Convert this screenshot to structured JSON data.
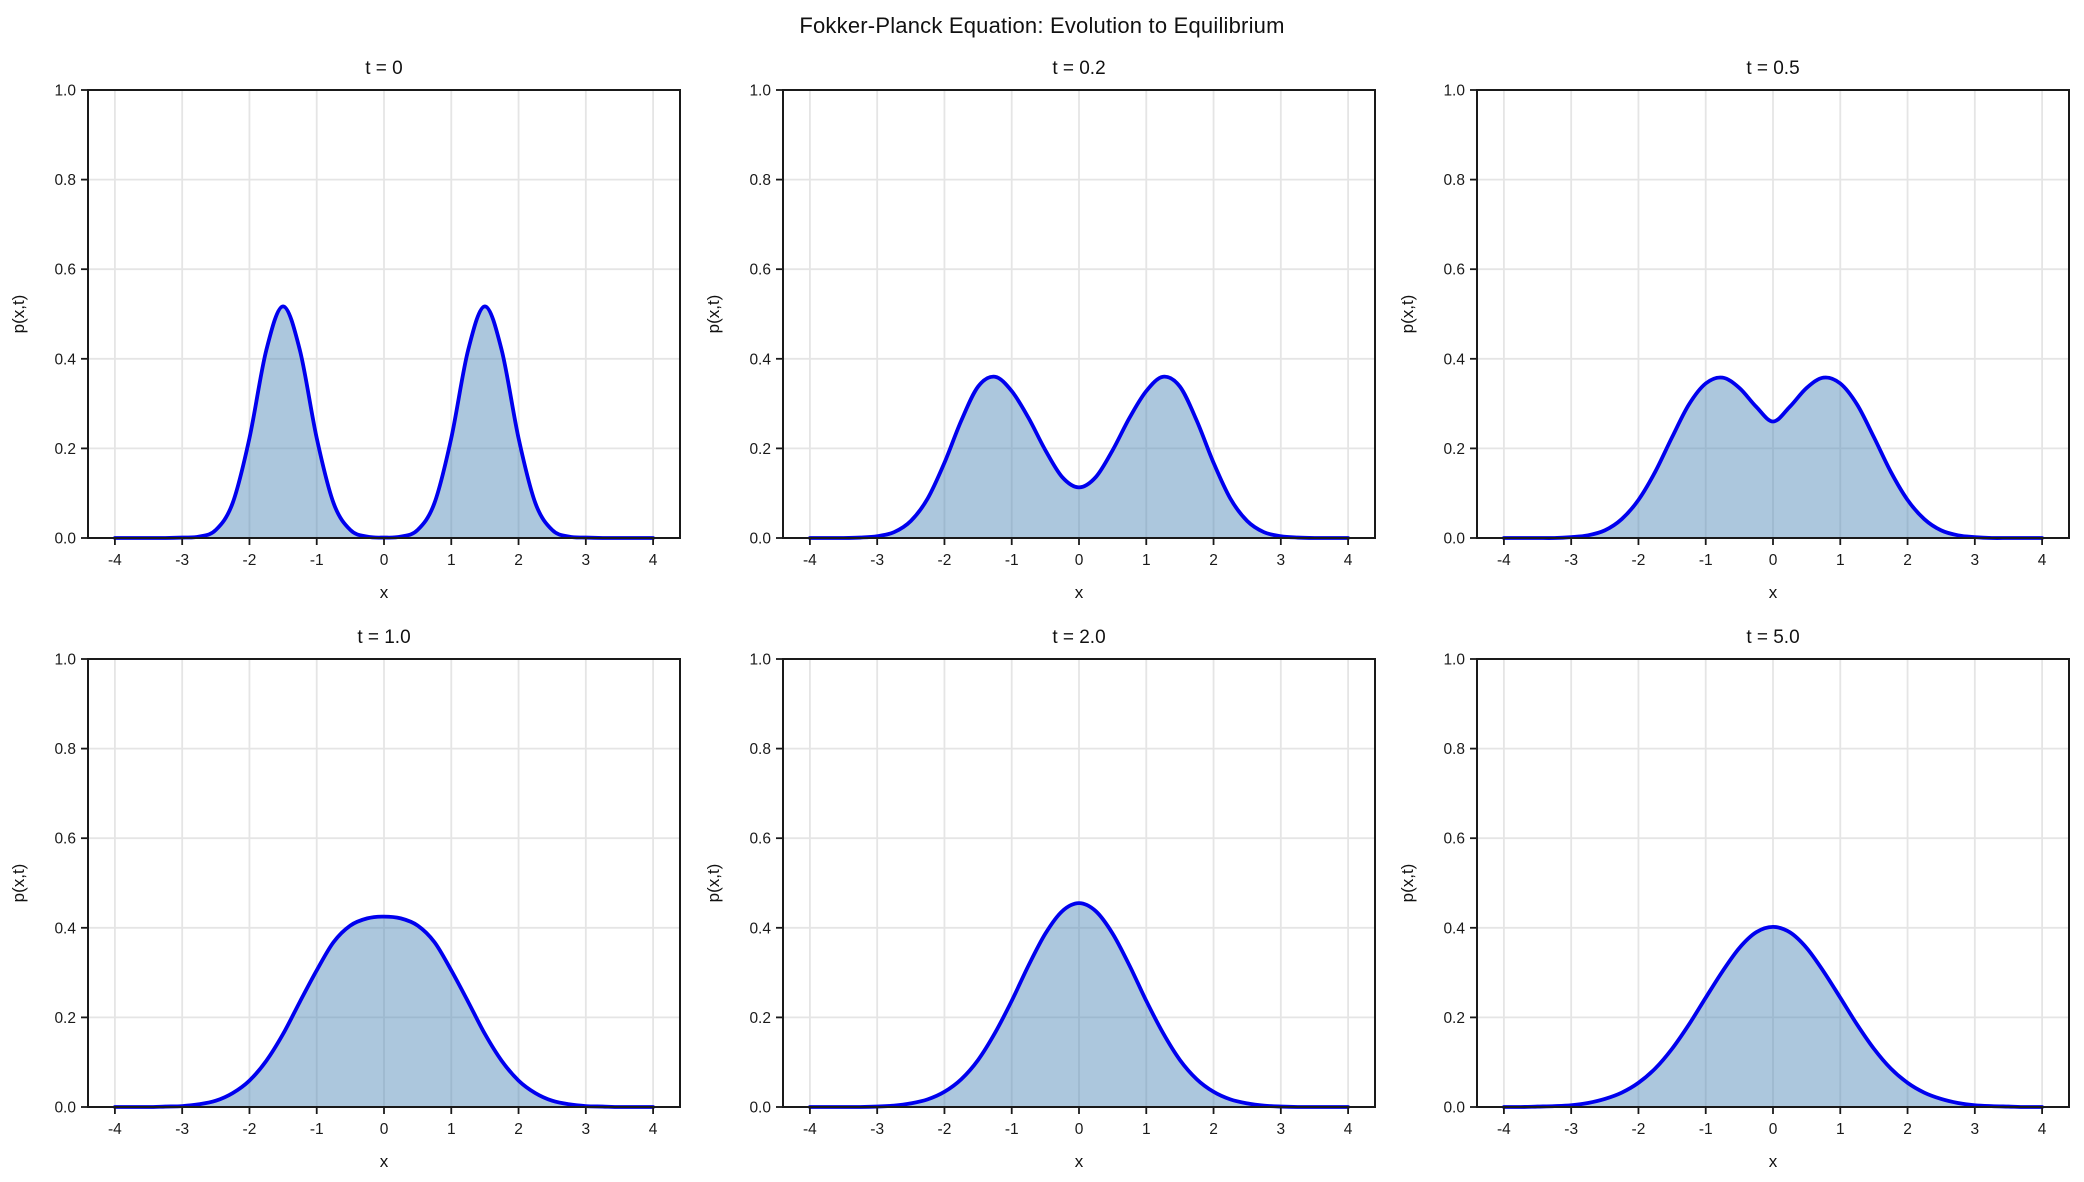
{
  "chart_data": {
    "type": "area",
    "suptitle": "Fokker-Planck Equation: Evolution to Equilibrium",
    "layout": "2 rows x 3 columns of subplots",
    "xlabel": "x",
    "ylabel": "p(x,t)",
    "xlim": [
      -4.4,
      4.4
    ],
    "ylim": [
      0,
      1
    ],
    "grid": true,
    "legend": "none",
    "xticks": [
      -4,
      -3,
      -2,
      -1,
      0,
      1,
      2,
      3,
      4
    ],
    "xtick_labels": [
      "-4",
      "-3",
      "-2",
      "-1",
      "0",
      "1",
      "2",
      "3",
      "4"
    ],
    "yticks": [
      0.0,
      0.2,
      0.4,
      0.6,
      0.8,
      1.0
    ],
    "ytick_labels": [
      "0.0",
      "0.2",
      "0.4",
      "0.6",
      "0.8",
      "1.0"
    ],
    "x": [
      -4,
      -3.75,
      -3.5,
      -3.25,
      -3,
      -2.75,
      -2.5,
      -2.25,
      -2,
      -1.75,
      -1.5,
      -1.25,
      -1,
      -0.75,
      -0.5,
      -0.25,
      0,
      0.25,
      0.5,
      0.75,
      1,
      1.25,
      1.5,
      1.75,
      2,
      2.25,
      2.5,
      2.75,
      3,
      3.25,
      3.5,
      3.75,
      4
    ],
    "subplots": [
      {
        "title": "t = 0",
        "y": [
          0,
          0,
          0,
          0,
          0.001,
          0.003,
          0.018,
          0.078,
          0.223,
          0.419,
          0.517,
          0.419,
          0.223,
          0.078,
          0.018,
          0.003,
          0.001,
          0.003,
          0.018,
          0.078,
          0.223,
          0.419,
          0.517,
          0.419,
          0.223,
          0.078,
          0.018,
          0.003,
          0.001,
          0,
          0,
          0,
          0
        ]
      },
      {
        "title": "t = 0.2",
        "y": [
          0,
          0,
          0,
          0.001,
          0.004,
          0.013,
          0.038,
          0.088,
          0.168,
          0.262,
          0.338,
          0.36,
          0.328,
          0.268,
          0.196,
          0.136,
          0.113,
          0.136,
          0.196,
          0.268,
          0.328,
          0.36,
          0.338,
          0.262,
          0.168,
          0.088,
          0.038,
          0.013,
          0.004,
          0.001,
          0,
          0,
          0
        ]
      },
      {
        "title": "t = 0.5",
        "y": [
          0,
          0,
          0,
          0,
          0.002,
          0.006,
          0.017,
          0.042,
          0.085,
          0.148,
          0.225,
          0.298,
          0.345,
          0.358,
          0.335,
          0.293,
          0.26,
          0.293,
          0.335,
          0.358,
          0.345,
          0.298,
          0.225,
          0.148,
          0.085,
          0.042,
          0.017,
          0.006,
          0.002,
          0,
          0,
          0,
          0
        ]
      },
      {
        "title": "t = 1.0",
        "y": [
          0,
          0,
          0,
          0.001,
          0.002,
          0.006,
          0.014,
          0.031,
          0.059,
          0.103,
          0.163,
          0.235,
          0.305,
          0.368,
          0.405,
          0.421,
          0.425,
          0.421,
          0.405,
          0.368,
          0.305,
          0.235,
          0.163,
          0.103,
          0.059,
          0.031,
          0.014,
          0.006,
          0.002,
          0.001,
          0,
          0,
          0
        ]
      },
      {
        "title": "t = 2.0",
        "y": [
          0,
          0,
          0,
          0,
          0.001,
          0.003,
          0.008,
          0.017,
          0.034,
          0.062,
          0.105,
          0.165,
          0.237,
          0.316,
          0.387,
          0.437,
          0.455,
          0.437,
          0.387,
          0.316,
          0.237,
          0.165,
          0.105,
          0.062,
          0.034,
          0.017,
          0.008,
          0.003,
          0.001,
          0,
          0,
          0,
          0
        ]
      },
      {
        "title": "t = 5.0",
        "y": [
          0,
          0,
          0.001,
          0.002,
          0.004,
          0.009,
          0.018,
          0.032,
          0.054,
          0.086,
          0.13,
          0.184,
          0.244,
          0.303,
          0.355,
          0.39,
          0.402,
          0.39,
          0.355,
          0.303,
          0.244,
          0.184,
          0.13,
          0.086,
          0.054,
          0.032,
          0.018,
          0.009,
          0.004,
          0.002,
          0.001,
          0,
          0
        ]
      }
    ],
    "style": {
      "line_color": "#0000ee",
      "fill_color": "#4682b4",
      "fill_opacity": 0.45,
      "grid_color": "#e5e5e5",
      "spine_color": "#1a1a1a",
      "text_color": "#111111",
      "background": "#ffffff"
    }
  }
}
